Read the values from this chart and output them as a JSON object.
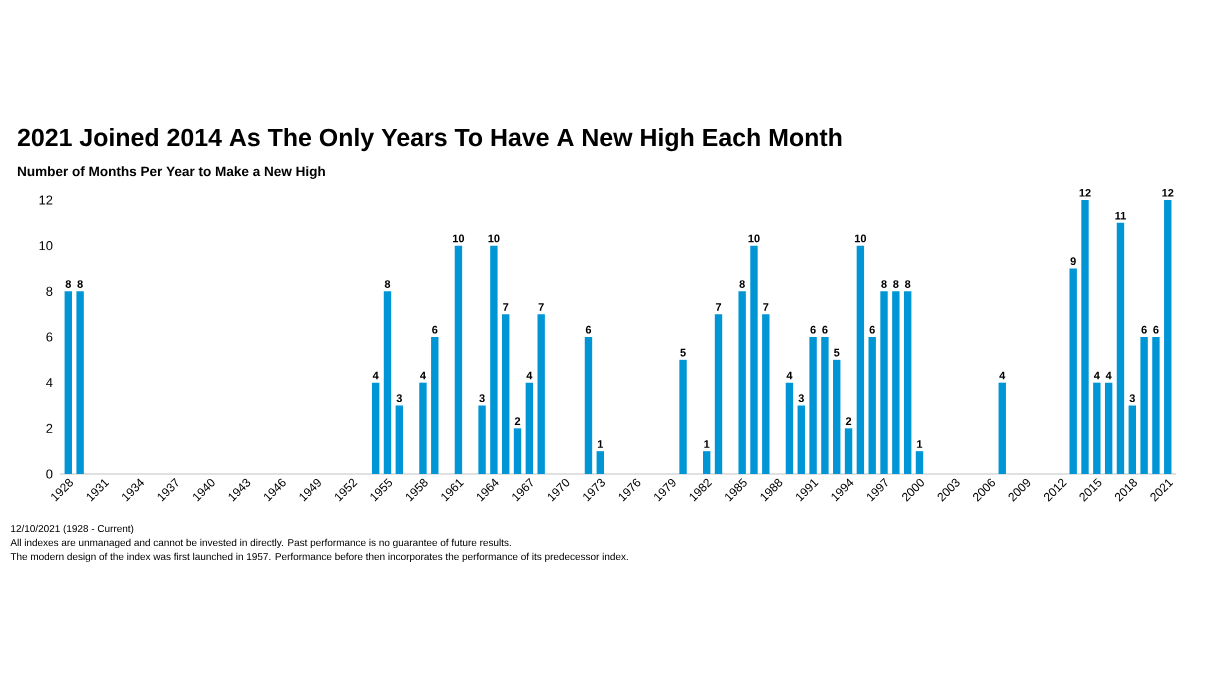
{
  "chart_data": {
    "type": "bar",
    "title": "2021 Joined 2014 As The Only Years To Have A New High Each Month",
    "subtitle": "Number of Months Per Year to Make a New High",
    "categories": [
      "1928",
      null,
      null,
      "1931",
      null,
      null,
      "1934",
      null,
      null,
      "1937",
      null,
      null,
      "1940",
      null,
      null,
      "1943",
      null,
      null,
      "1946",
      null,
      null,
      "1949",
      null,
      null,
      "1952",
      null,
      null,
      "1955",
      null,
      null,
      "1958",
      null,
      null,
      "1961",
      null,
      null,
      "1964",
      null,
      null,
      "1967",
      null,
      null,
      "1970",
      null,
      null,
      "1973",
      null,
      null,
      "1976",
      null,
      null,
      "1979",
      null,
      null,
      "1982",
      null,
      null,
      "1985",
      null,
      null,
      "1988",
      null,
      null,
      "1991",
      null,
      null,
      "1994",
      null,
      null,
      "1997",
      null,
      null,
      "2000",
      null,
      null,
      "2003",
      null,
      null,
      "2006",
      null,
      null,
      "2009",
      null,
      null,
      "2012",
      null,
      null,
      "2015",
      null,
      null,
      "2018",
      null,
      null,
      "2021"
    ],
    "values": [
      8,
      8,
      0,
      0,
      0,
      0,
      0,
      0,
      0,
      0,
      0,
      0,
      0,
      0,
      0,
      0,
      0,
      0,
      0,
      0,
      0,
      0,
      0,
      0,
      0,
      0,
      4,
      8,
      3,
      0,
      4,
      6,
      0,
      10,
      0,
      3,
      10,
      7,
      2,
      4,
      7,
      0,
      0,
      0,
      6,
      1,
      0,
      0,
      0,
      0,
      0,
      0,
      5,
      0,
      1,
      7,
      0,
      8,
      10,
      7,
      0,
      4,
      3,
      6,
      6,
      5,
      2,
      10,
      6,
      8,
      8,
      8,
      1,
      0,
      0,
      0,
      0,
      0,
      0,
      4,
      0,
      0,
      0,
      0,
      0,
      9,
      12,
      4,
      4,
      11,
      3,
      6,
      6,
      12
    ],
    "value_labels": [
      "8",
      "8",
      null,
      null,
      null,
      null,
      null,
      null,
      null,
      null,
      null,
      null,
      null,
      null,
      null,
      null,
      null,
      null,
      null,
      null,
      null,
      null,
      null,
      null,
      null,
      null,
      "4",
      "8",
      "3",
      null,
      "4",
      "6",
      null,
      "10",
      null,
      "3",
      "10",
      "7",
      "2",
      "4",
      "7",
      null,
      null,
      null,
      "6",
      "1",
      null,
      null,
      null,
      null,
      null,
      null,
      "5",
      null,
      "1",
      "7",
      null,
      "8",
      "10",
      "7",
      null,
      "4",
      "3",
      "6",
      "6",
      "5",
      "2",
      "10",
      "6",
      "8",
      "8",
      "8",
      "1",
      null,
      null,
      null,
      null,
      null,
      null,
      "4",
      null,
      null,
      null,
      null,
      null,
      "9",
      "12",
      "4",
      "4",
      "11",
      "3",
      "6",
      "6",
      "12"
    ],
    "color": "#0096d6",
    "ylim": [
      0,
      12
    ],
    "yticks": [
      0,
      2,
      4,
      6,
      8,
      10,
      12
    ],
    "annotations": [
      "12/10/2021 (1928 - Current)",
      "All indexes are unmanaged and cannot be invested in directly. Past performance is no guarantee of future results.",
      "The modern design of the index was first launched in 1957. Performance before then incorporates the performance of its predecessor index."
    ]
  }
}
